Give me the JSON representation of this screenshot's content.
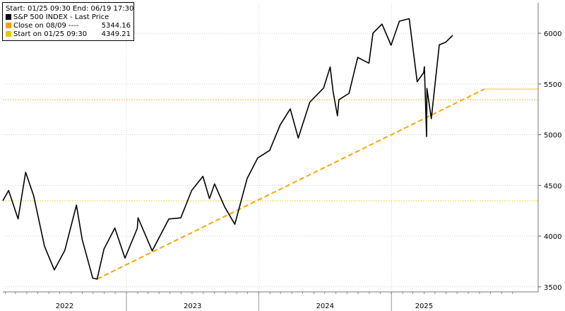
{
  "legend": {
    "header": "Start: 01/25 09:30 End: 06/19 17:30",
    "items": [
      {
        "label": "S&P 500 INDEX - Last Price",
        "value": "",
        "color": "#000000"
      },
      {
        "label": "Close on 08/09 ----",
        "value": "5344.16",
        "color": "#f5a100"
      },
      {
        "label": "Start on 01/25 09:30",
        "value": "4349.21",
        "color": "#e6c800"
      }
    ]
  },
  "chart_data": {
    "type": "line",
    "title": "",
    "xlabel": "",
    "ylabel": "",
    "x_tick_labels": [
      "2022",
      "2023",
      "2024",
      "2025"
    ],
    "y_ticks": [
      3500,
      4000,
      4500,
      5000,
      5500,
      6000
    ],
    "ylim": [
      3450,
      6300
    ],
    "xlim": [
      "2022-01-25",
      "2025-06-19"
    ],
    "grid": true,
    "legend_position": "top-left",
    "series": [
      {
        "name": "S&P 500 INDEX - Last Price",
        "color": "#000000",
        "x": [
          "2022-01-25",
          "2022-02-10",
          "2022-03-08",
          "2022-03-29",
          "2022-04-20",
          "2022-05-20",
          "2022-06-16",
          "2022-07-15",
          "2022-08-16",
          "2022-09-01",
          "2022-09-30",
          "2022-10-12",
          "2022-10-31",
          "2022-11-30",
          "2022-12-28",
          "2023-01-31",
          "2023-02-02",
          "2023-03-13",
          "2023-04-28",
          "2023-05-31",
          "2023-06-30",
          "2023-07-31",
          "2023-08-18",
          "2023-09-01",
          "2023-09-29",
          "2023-10-27",
          "2023-11-30",
          "2023-12-29",
          "2024-01-31",
          "2024-02-29",
          "2024-03-28",
          "2024-04-19",
          "2024-05-21",
          "2024-06-28",
          "2024-07-16",
          "2024-07-24",
          "2024-08-05",
          "2024-08-09",
          "2024-09-06",
          "2024-09-30",
          "2024-10-31",
          "2024-11-11",
          "2024-12-06",
          "2024-12-31",
          "2025-01-23",
          "2025-02-19",
          "2025-03-13",
          "2025-03-31",
          "2025-04-02",
          "2025-04-08",
          "2025-04-09",
          "2025-04-21",
          "2025-05-13",
          "2025-05-31",
          "2025-06-19"
        ],
        "y": [
          4349,
          4450,
          4170,
          4630,
          4400,
          3900,
          3667,
          3860,
          4305,
          3966,
          3586,
          3577,
          3872,
          4080,
          3783,
          4077,
          4180,
          3855,
          4169,
          4180,
          4450,
          4589,
          4370,
          4515,
          4288,
          4117,
          4568,
          4770,
          4845,
          5096,
          5254,
          4967,
          5321,
          5460,
          5667,
          5427,
          5186,
          5344,
          5408,
          5762,
          5705,
          6001,
          6090,
          5882,
          6119,
          6144,
          5522,
          5612,
          5670,
          4982,
          5456,
          5158,
          5886,
          5912,
          5980
        ]
      },
      {
        "name": "Close on 08/09",
        "color": "#f5a100",
        "style": "dotted-horizontal",
        "y_level": 5344.16
      },
      {
        "name": "Start on 01/25 09:30",
        "color": "#e6c800",
        "style": "dotted-horizontal",
        "y_level": 4349.21
      },
      {
        "name": "",
        "color": "#f5a800",
        "style": "dashed-trend",
        "x": [
          "2022-10-12",
          "2025-06-19"
        ],
        "y": [
          3577,
          5450
        ]
      }
    ]
  }
}
